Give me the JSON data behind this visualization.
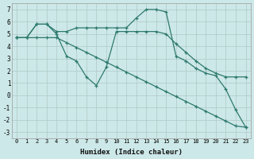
{
  "xlabel": "Humidex (Indice chaleur)",
  "background_color": "#cde8e8",
  "grid_color": "#b0c8c8",
  "line_color": "#2d7a6e",
  "xlim": [
    -0.5,
    23.5
  ],
  "ylim": [
    -3.5,
    7.5
  ],
  "xticks": [
    0,
    1,
    2,
    3,
    4,
    5,
    6,
    7,
    8,
    9,
    10,
    11,
    12,
    13,
    14,
    15,
    16,
    17,
    18,
    19,
    20,
    21,
    22,
    23
  ],
  "yticks": [
    -3,
    -2,
    -1,
    0,
    1,
    2,
    3,
    4,
    5,
    6,
    7
  ],
  "line1_x": [
    0,
    1,
    2,
    3,
    4,
    5,
    6,
    7,
    8,
    9,
    10,
    11,
    12,
    13,
    14,
    15,
    16,
    17,
    18,
    19,
    20,
    21,
    22,
    23
  ],
  "line1_y": [
    4.7,
    4.7,
    5.8,
    5.8,
    5.2,
    5.2,
    5.5,
    5.5,
    5.5,
    5.5,
    5.5,
    5.5,
    6.3,
    7.0,
    7.0,
    6.8,
    3.2,
    2.8,
    2.2,
    1.8,
    1.6,
    0.5,
    -1.2,
    -2.6
  ],
  "line2_x": [
    0,
    1,
    2,
    3,
    4,
    5,
    6,
    7,
    8,
    9,
    10,
    11,
    12,
    13,
    14,
    15,
    16,
    17,
    18,
    19,
    20,
    21,
    22,
    23
  ],
  "line2_y": [
    4.7,
    4.7,
    5.8,
    5.8,
    5.0,
    3.2,
    2.8,
    1.5,
    0.8,
    2.3,
    5.2,
    5.2,
    5.2,
    5.2,
    5.2,
    5.0,
    4.2,
    3.5,
    2.8,
    2.2,
    1.8,
    1.5,
    1.5,
    1.5
  ],
  "line3_x": [
    0,
    1,
    2,
    3,
    4,
    5,
    6,
    7,
    8,
    9,
    10,
    11,
    12,
    13,
    14,
    15,
    16,
    17,
    18,
    19,
    20,
    21,
    22,
    23
  ],
  "line3_y": [
    4.7,
    4.7,
    4.7,
    4.7,
    4.7,
    4.3,
    3.9,
    3.5,
    3.1,
    2.7,
    2.3,
    1.9,
    1.5,
    1.1,
    0.7,
    0.3,
    -0.1,
    -0.5,
    -0.9,
    -1.3,
    -1.7,
    -2.1,
    -2.5,
    -2.6
  ]
}
